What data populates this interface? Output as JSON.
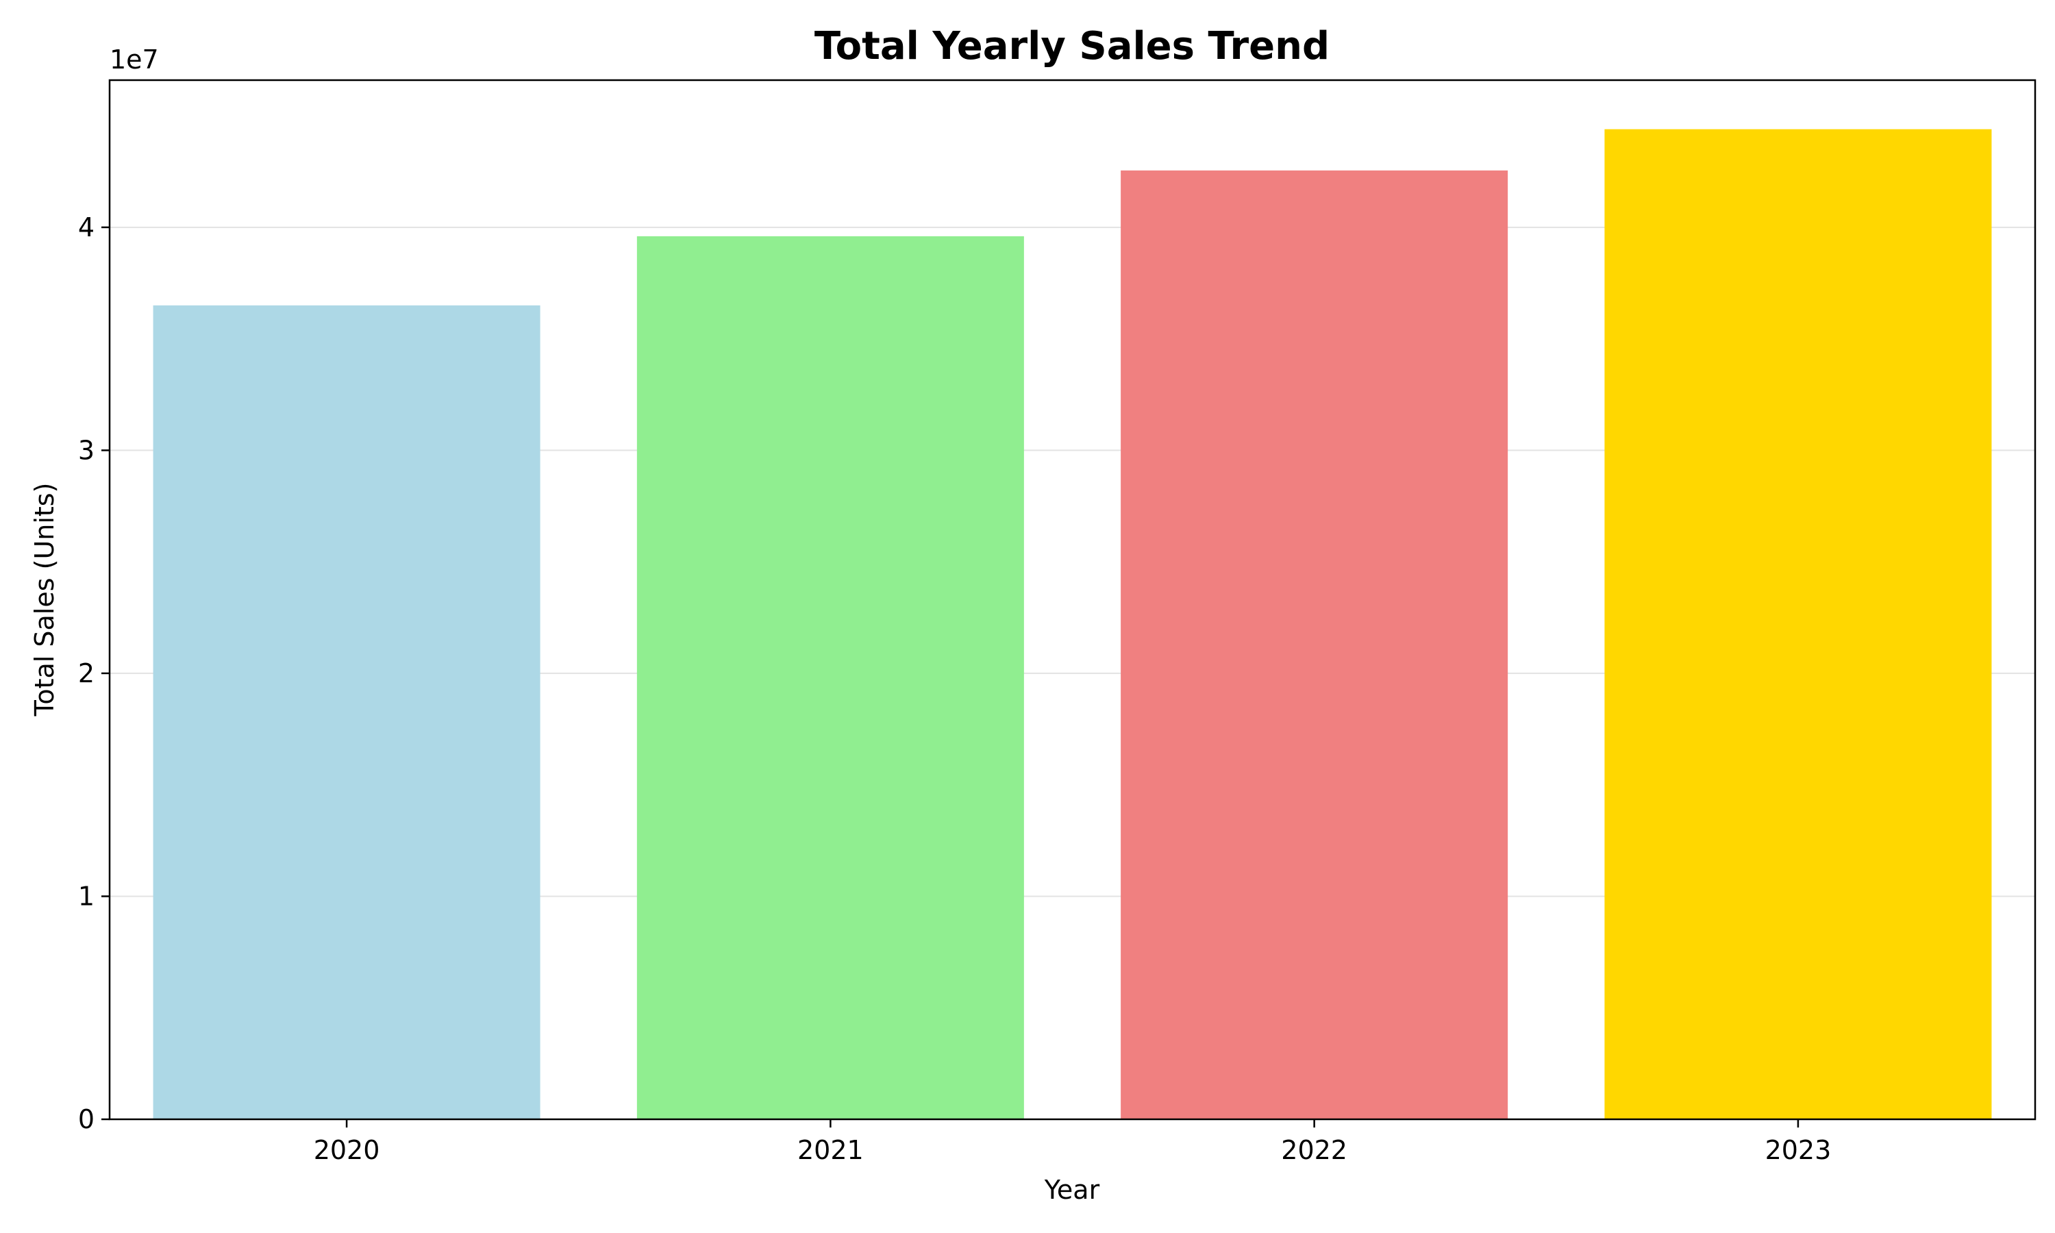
{
  "chart_data": {
    "type": "bar",
    "title": "Total Yearly Sales Trend",
    "xlabel": "Year",
    "ylabel": "Total Sales (Units)",
    "offset_label": "1e7",
    "categories": [
      "2020",
      "2021",
      "2022",
      "2023"
    ],
    "values": [
      36500000,
      39600000,
      42550000,
      44400000
    ],
    "colors": [
      "#add8e6",
      "#90ee90",
      "#f08080",
      "#ffd700"
    ],
    "ylim": [
      0,
      46600000
    ],
    "yticks": [
      0,
      10000000,
      20000000,
      30000000,
      40000000
    ],
    "ytick_labels": [
      "0",
      "1",
      "2",
      "3",
      "4"
    ],
    "grid": "y-major",
    "legend": "none"
  }
}
